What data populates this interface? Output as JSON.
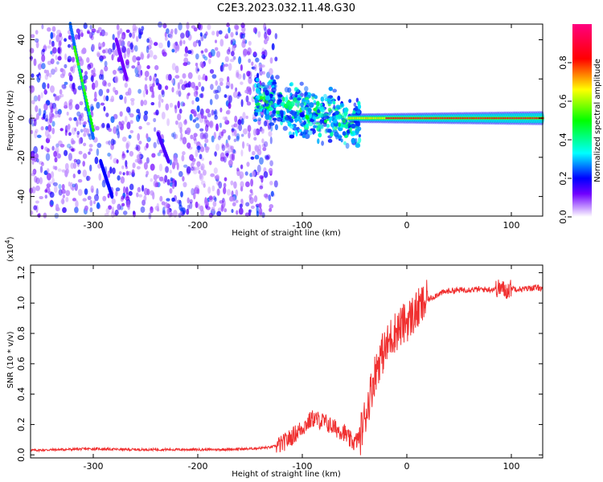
{
  "title": "C2E3.2023.032.11.48.G30",
  "chart_data": [
    {
      "type": "heatmap",
      "name": "spectrogram",
      "xlabel": "Height of straight line (km)",
      "ylabel": "Frequency (Hz)",
      "xlim": [
        -360,
        130
      ],
      "ylim": [
        -50,
        48
      ],
      "xticks": [
        -300,
        -200,
        -100,
        0,
        100
      ],
      "xtick_labels": [
        "-300",
        "-200",
        "-100",
        "0",
        "100"
      ],
      "yticks": [
        -40,
        -20,
        0,
        20,
        40
      ],
      "ytick_labels": [
        "-40",
        "-20",
        "0",
        "20",
        "40"
      ],
      "features": [
        {
          "kind": "noise_field",
          "x_range": [
            -360,
            -125
          ],
          "y_range": [
            -50,
            48
          ],
          "amplitude_range": [
            0.05,
            0.25
          ]
        },
        {
          "kind": "linear_streak",
          "x": [
            -322,
            -300
          ],
          "y": [
            48,
            -10
          ],
          "amplitude": 0.25,
          "segment_peak": {
            "x": [
              -318,
              -300
            ],
            "y": [
              36,
              -6
            ],
            "amplitude": 0.55
          }
        },
        {
          "kind": "linear_streak",
          "x": [
            -293,
            -282
          ],
          "y": [
            -22,
            -40
          ],
          "amplitude": 0.2
        },
        {
          "kind": "linear_streak",
          "x": [
            -238,
            -228
          ],
          "y": [
            -8,
            -22
          ],
          "amplitude": 0.15
        },
        {
          "kind": "linear_streak",
          "x": [
            -278,
            -268
          ],
          "y": [
            40,
            20
          ],
          "amplitude": 0.12
        },
        {
          "kind": "cloud",
          "x_range": [
            -145,
            -45
          ],
          "y_center": [
            10,
            -3
          ],
          "y_spread": 6,
          "amplitude_range": [
            0.2,
            0.55
          ]
        },
        {
          "kind": "narrow_band",
          "x_range": [
            -55,
            130
          ],
          "y_center": 0,
          "amplitude_range": [
            0.5,
            0.95
          ]
        }
      ],
      "colorbar": {
        "label": "Normalized spectral amplitude",
        "range": [
          0.0,
          1.0
        ],
        "ticks": [
          0.0,
          0.2,
          0.4,
          0.6,
          0.8
        ],
        "tick_labels": [
          "0.0",
          "0.2",
          "0.4",
          "0.6",
          "0.8"
        ]
      }
    },
    {
      "type": "line",
      "name": "snr",
      "xlabel": "Height of straight line (km)",
      "ylabel": "SNR (10 * v/v)",
      "y_scale_label": "(x10",
      "y_scale_exp": "4",
      "y_scale_suffix": ")",
      "xlim": [
        -360,
        130
      ],
      "ylim": [
        -0.02,
        1.25
      ],
      "xticks": [
        -300,
        -200,
        -100,
        0,
        100
      ],
      "xtick_labels": [
        "-300",
        "-200",
        "-100",
        "0",
        "100"
      ],
      "yticks": [
        0.0,
        0.2,
        0.4,
        0.6,
        0.8,
        1.0,
        1.2
      ],
      "ytick_labels": [
        "0.0",
        "0.2",
        "0.4",
        "0.6",
        "0.8",
        "1.0",
        "1.2"
      ],
      "line_color": "#f03030",
      "x": [
        -360,
        -330,
        -300,
        -270,
        -240,
        -210,
        -180,
        -150,
        -130,
        -120,
        -110,
        -100,
        -90,
        -80,
        -70,
        -60,
        -55,
        -50,
        -45,
        -40,
        -35,
        -30,
        -25,
        -20,
        -15,
        -10,
        -5,
        0,
        10,
        20,
        30,
        40,
        60,
        80,
        90,
        95,
        100,
        110,
        120,
        130
      ],
      "y": [
        0.03,
        0.035,
        0.04,
        0.035,
        0.035,
        0.035,
        0.035,
        0.04,
        0.05,
        0.07,
        0.12,
        0.18,
        0.24,
        0.22,
        0.18,
        0.15,
        0.1,
        0.08,
        0.12,
        0.25,
        0.4,
        0.55,
        0.65,
        0.7,
        0.78,
        0.82,
        0.85,
        0.88,
        0.95,
        1.02,
        1.06,
        1.08,
        1.09,
        1.09,
        1.1,
        1.08,
        1.1,
        1.09,
        1.1,
        1.1
      ]
    }
  ]
}
